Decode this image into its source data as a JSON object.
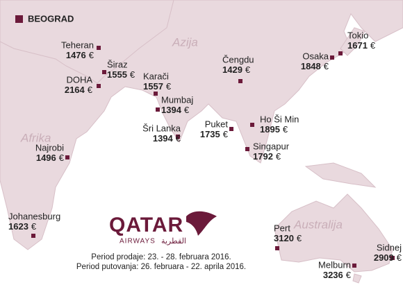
{
  "origin": "BEOGRAD",
  "regions": [
    "Azija",
    "Afrika",
    "Australija"
  ],
  "destinations": [
    {
      "name": "Teheran",
      "price": 1476,
      "currency": "€"
    },
    {
      "name": "Širaz",
      "price": 1555,
      "currency": "€"
    },
    {
      "name": "DOHA",
      "price": 2164,
      "currency": "€"
    },
    {
      "name": "Karači",
      "price": 1557,
      "currency": "€"
    },
    {
      "name": "Mumbaj",
      "price": 1394,
      "currency": "€"
    },
    {
      "name": "Šri Lanka",
      "price": 1394,
      "currency": "€"
    },
    {
      "name": "Čengdu",
      "price": 1429,
      "currency": "€"
    },
    {
      "name": "Puket",
      "price": 1735,
      "currency": "€"
    },
    {
      "name": "Ho Ši Min",
      "price": 1895,
      "currency": "€"
    },
    {
      "name": "Singapur",
      "price": 1792,
      "currency": "€"
    },
    {
      "name": "Osaka",
      "price": 1848,
      "currency": "€"
    },
    {
      "name": "Tokio",
      "price": 1671,
      "currency": "€"
    },
    {
      "name": "Najrobi",
      "price": 1496,
      "currency": "€"
    },
    {
      "name": "Johanesburg",
      "price": 1623,
      "currency": "€"
    },
    {
      "name": "Pert",
      "price": 3120,
      "currency": "€"
    },
    {
      "name": "Sidnej",
      "price": 2909,
      "currency": "€"
    },
    {
      "name": "Melburn",
      "price": 3236,
      "currency": "€"
    }
  ],
  "logo": {
    "brand": "QATAR",
    "sub": "AIRWAYS",
    "arabic": "القطرية"
  },
  "footer": [
    "Period prodaje: 23. - 28. februara 2016.",
    "Period putovanja: 26. februara - 22. aprila 2016."
  ]
}
